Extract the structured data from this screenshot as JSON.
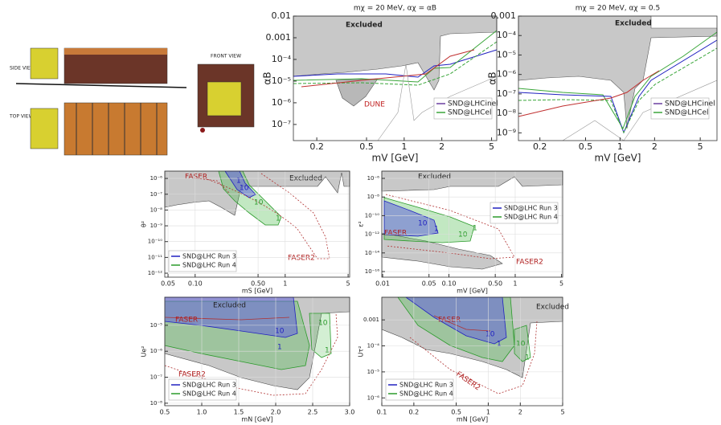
{
  "detector": {
    "side_view": "SIDE VIEW",
    "top_view": "TOP VIEW",
    "front_view": "FRONT VIEW"
  },
  "panels": [
    {
      "title": "mχ = 20 MeV, αχ = αB",
      "xlabel": "mV [GeV]",
      "ylabel": "αB",
      "xlog": true,
      "ylog": true,
      "grid": false,
      "xlim": [
        0.13,
        5.5
      ],
      "ylim": [
        1.8e-08,
        0.01
      ],
      "xticks": [
        0.2,
        0.5,
        1,
        2,
        5
      ],
      "yticks": [
        {
          "value": 1e-07,
          "label": "10⁻⁷"
        },
        {
          "value": 1e-06,
          "label": "10⁻⁶"
        },
        {
          "value": 1e-05,
          "label": "10⁻⁵"
        },
        {
          "value": 0.0001,
          "label": "10⁻⁴"
        },
        0.001,
        0.01
      ],
      "annotations": [
        "Excluded",
        "DUNE"
      ],
      "legend": [
        {
          "name": "SND@LHCinel",
          "color": "#6a3fa0"
        },
        {
          "name": "SND@LHCel",
          "color": "#3aa63a"
        }
      ]
    },
    {
      "title": "mχ = 20 MeV, αχ = 0.5",
      "xlabel": "mV [GeV]",
      "ylabel": "αB",
      "xlog": true,
      "ylog": true,
      "grid": false,
      "xlim": [
        0.13,
        7
      ],
      "ylim": [
        4e-10,
        0.001
      ],
      "xticks": [
        0.2,
        0.5,
        1,
        2,
        5
      ],
      "yticks": [
        {
          "value": 1e-09,
          "label": "10⁻⁹"
        },
        {
          "value": 1e-08,
          "label": "10⁻⁸"
        },
        {
          "value": 1e-07,
          "label": "10⁻⁷"
        },
        {
          "value": 1e-06,
          "label": "10⁻⁶"
        },
        {
          "value": 1e-05,
          "label": "10⁻⁵"
        },
        {
          "value": 0.0001,
          "label": "10⁻⁴"
        },
        0.001
      ],
      "annotations": [
        "Excluded"
      ],
      "legend": [
        {
          "name": "SND@LHCinel",
          "color": "#6a3fa0"
        },
        {
          "name": "SND@LHCel",
          "color": "#3aa63a"
        }
      ]
    },
    {
      "xlabel": "mS [GeV]",
      "ylabel": "θ²",
      "xlog": true,
      "ylog": true,
      "grid": true,
      "xlim": [
        0.046,
        5.2
      ],
      "ylim": [
        5.6e-13,
        2.9e-06
      ],
      "xticks": [
        0.05,
        {
          "value": 0.1,
          "label": "0.10"
        },
        {
          "value": 0.5,
          "label": "0.50"
        },
        1,
        5
      ],
      "yticks": [
        {
          "value": 1e-12,
          "label": "10⁻¹²"
        },
        {
          "value": 1e-11,
          "label": "10⁻¹¹"
        },
        {
          "value": 1e-10,
          "label": "10⁻¹⁰"
        },
        {
          "value": 1e-09,
          "label": "10⁻⁹"
        },
        {
          "value": 1e-08,
          "label": "10⁻⁸"
        },
        {
          "value": 1e-07,
          "label": "10⁻⁷"
        },
        {
          "value": 1e-06,
          "label": "10⁻⁶"
        }
      ],
      "annotations": [
        "FASER",
        "Excluded",
        "FASER2",
        "1",
        "10",
        "10",
        "1"
      ],
      "legend": [
        {
          "name": "SND@LHC Run 3",
          "color": "#2020c0"
        },
        {
          "name": "SND@LHC Run 4",
          "color": "#2a9a2a"
        }
      ]
    },
    {
      "xlabel": "mV [GeV]",
      "ylabel": "ε²",
      "xlog": true,
      "ylog": true,
      "grid": true,
      "xlim": [
        0.0097,
        5.2
      ],
      "ylim": [
        2.5e-17,
        6e-06
      ],
      "xticks": [
        0.01,
        0.05,
        {
          "value": 0.1,
          "label": "0.10"
        },
        {
          "value": 0.5,
          "label": "0.50"
        },
        1,
        5
      ],
      "yticks": [
        {
          "value": 1e-16,
          "label": "10⁻¹⁶"
        },
        {
          "value": 1e-14,
          "label": "10⁻¹⁴"
        },
        {
          "value": 1e-12,
          "label": "10⁻¹²"
        },
        {
          "value": 1e-10,
          "label": "10⁻¹⁰"
        },
        {
          "value": 1e-08,
          "label": "10⁻⁸"
        },
        {
          "value": 1e-06,
          "label": "10⁻⁶"
        }
      ],
      "annotations": [
        "Excluded",
        "10",
        "1",
        "FASER",
        "10",
        "1",
        "FASER2"
      ],
      "legend": [
        {
          "name": "SND@LHC Run 3",
          "color": "#2020c0"
        },
        {
          "name": "SND@LHC Run 4",
          "color": "#2a9a2a"
        }
      ]
    },
    {
      "xlabel": "mN [GeV]",
      "ylabel": "Ue²",
      "xlog": false,
      "ylog": true,
      "grid": true,
      "xlim": [
        0.5,
        3
      ],
      "ylim": [
        8e-09,
        0.00012
      ],
      "xticks": [
        0.5,
        {
          "value": 1,
          "label": "1.0"
        },
        1.5,
        {
          "value": 2,
          "label": "2.0"
        },
        2.5,
        {
          "value": 3,
          "label": "3.0"
        }
      ],
      "yticks": [
        {
          "value": 1e-08,
          "label": "10⁻⁸"
        },
        {
          "value": 1e-07,
          "label": "10⁻⁷"
        },
        {
          "value": 1e-06,
          "label": "10⁻⁶"
        },
        {
          "value": 1e-05,
          "label": "10⁻⁵"
        }
      ],
      "annotations": [
        "Excluded",
        "FASER",
        "10",
        "1",
        "10",
        "1",
        "FASER2"
      ],
      "legend": [
        {
          "name": "SND@LHC Run 3",
          "color": "#2020c0"
        },
        {
          "name": "SND@LHC Run 4",
          "color": "#2a9a2a"
        }
      ]
    },
    {
      "xlabel": "mN [GeV]",
      "ylabel": "Uτ²",
      "xlog": true,
      "ylog": true,
      "grid": true,
      "xlim": [
        0.1,
        5
      ],
      "ylim": [
        5e-07,
        0.0074
      ],
      "xticks": [
        0.1,
        0.2,
        0.5,
        1,
        2,
        5
      ],
      "yticks": [
        {
          "value": 1e-06,
          "label": "10⁻⁶"
        },
        {
          "value": 1e-05,
          "label": "10⁻⁵"
        },
        {
          "value": 0.0001,
          "label": "10⁻⁴"
        },
        0.001
      ],
      "annotations": [
        "Excluded",
        "FASER",
        "10",
        "1",
        "10",
        "1",
        "FASER2"
      ],
      "legend": [
        {
          "name": "SND@LHC Run 3",
          "color": "#2020c0"
        },
        {
          "name": "SND@LHC Run 4",
          "color": "#2a9a2a"
        }
      ]
    }
  ]
}
